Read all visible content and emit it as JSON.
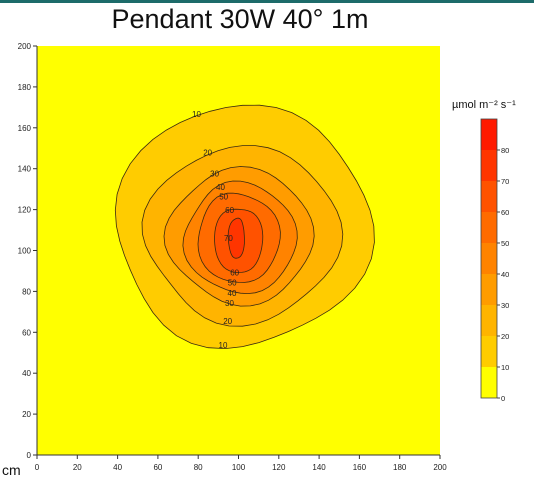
{
  "chart_data": {
    "type": "heatmap",
    "title": "Pendant 30W 40° 1m",
    "units_label": "µmol m⁻² s⁻¹",
    "axis_unit_label": "cm",
    "xlim": [
      0,
      200
    ],
    "ylim": [
      0,
      200
    ],
    "x_ticks": [
      0,
      20,
      40,
      60,
      80,
      100,
      120,
      140,
      160,
      180,
      200
    ],
    "y_ticks": [
      0,
      20,
      40,
      60,
      80,
      100,
      120,
      140,
      160,
      180,
      200
    ],
    "colorbar_ticks": [
      0,
      10,
      20,
      30,
      40,
      50,
      60,
      70,
      80
    ],
    "peak": {
      "x": 100,
      "y": 105,
      "value": 88
    },
    "contour_levels": [
      {
        "level": 10,
        "color": "#ffcc00",
        "cx": 102,
        "cy": 112,
        "rx": 62,
        "ry": 59
      },
      {
        "level": 20,
        "color": "#ffb400",
        "cx": 102,
        "cy": 108,
        "rx": 47,
        "ry": 43
      },
      {
        "level": 30,
        "color": "#ff9c00",
        "cx": 101,
        "cy": 107,
        "rx": 35,
        "ry": 33
      },
      {
        "level": 40,
        "color": "#ff8300",
        "cx": 101,
        "cy": 106,
        "rx": 27,
        "ry": 27
      },
      {
        "level": 50,
        "color": "#ff6b00",
        "cx": 100,
        "cy": 106,
        "rx": 20,
        "ry": 22
      },
      {
        "level": 60,
        "color": "#ff5200",
        "cx": 100,
        "cy": 105,
        "rx": 12,
        "ry": 16
      },
      {
        "level": 70,
        "color": "#ff3500",
        "cx": 99,
        "cy": 106,
        "rx": 4,
        "ry": 10
      }
    ],
    "colorbar_colors": [
      "#ffff00",
      "#ffcc00",
      "#ffb400",
      "#ff9c00",
      "#ff8300",
      "#ff6b00",
      "#ff5200",
      "#ff3500",
      "#ff1a00"
    ]
  }
}
